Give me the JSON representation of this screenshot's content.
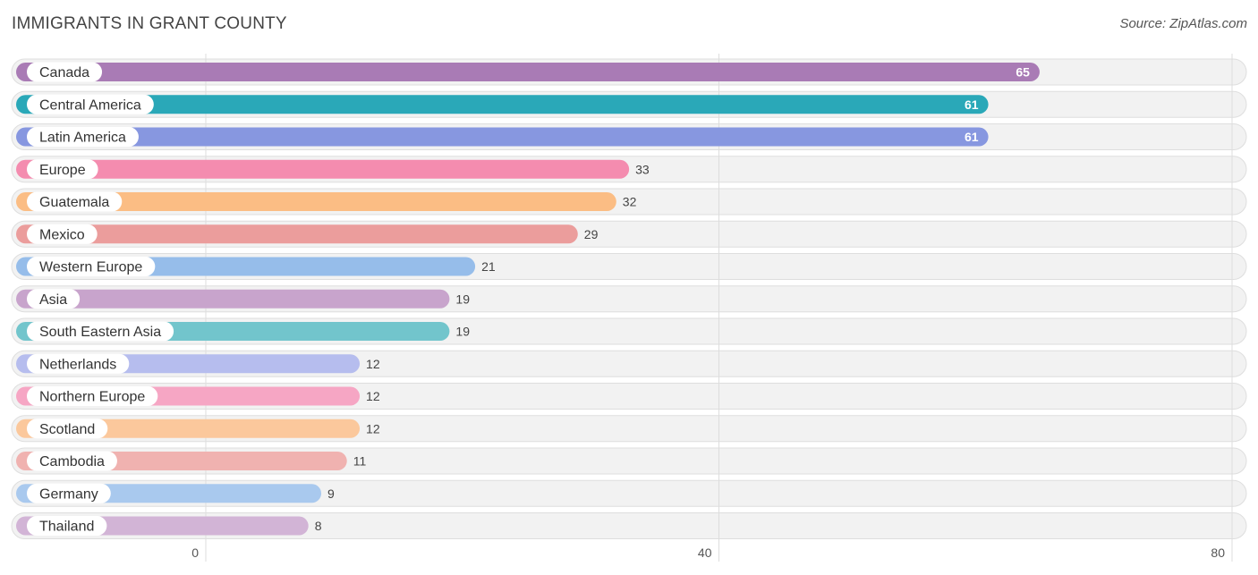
{
  "chart_data": {
    "type": "bar",
    "orientation": "horizontal",
    "title": "IMMIGRANTS IN GRANT COUNTY",
    "source": "Source: ZipAtlas.com",
    "xlabel": "",
    "ylabel": "",
    "xlim": [
      0,
      80
    ],
    "ticks": [
      0,
      40,
      80
    ],
    "categories": [
      "Canada",
      "Central America",
      "Latin America",
      "Europe",
      "Guatemala",
      "Mexico",
      "Western Europe",
      "Asia",
      "South Eastern Asia",
      "Netherlands",
      "Northern Europe",
      "Scotland",
      "Cambodia",
      "Germany",
      "Thailand"
    ],
    "values": [
      65,
      61,
      61,
      33,
      32,
      29,
      21,
      19,
      19,
      12,
      12,
      12,
      11,
      9,
      8
    ],
    "colors": [
      "#a97bb5",
      "#2aa8b8",
      "#8797e0",
      "#f48caf",
      "#fbbd84",
      "#eb9d9c",
      "#96bdea",
      "#c8a4cc",
      "#72c5cc",
      "#b6bdee",
      "#f6a6c4",
      "#fbc89c",
      "#f0b2b0",
      "#a9c9ee",
      "#d2b4d6"
    ]
  }
}
